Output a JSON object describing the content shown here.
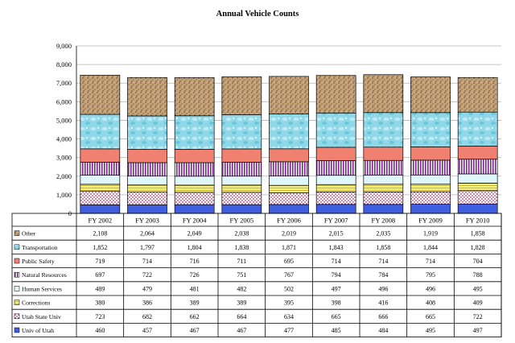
{
  "chart_data": {
    "type": "bar",
    "stacked": true,
    "title": "Annual Vehicle Counts",
    "xlabel": "",
    "ylabel": "",
    "ylim": [
      0,
      9000
    ],
    "yticks": [
      "0",
      "1,000",
      "2,000",
      "3,000",
      "4,000",
      "5,000",
      "6,000",
      "7,000",
      "8,000",
      "9,000"
    ],
    "grid": true,
    "legend": "data table, left",
    "categories": [
      "FY 2002",
      "FY 2003",
      "FY 2004",
      "FY 2005",
      "FY 2006",
      "FY 2007",
      "FY 2008",
      "FY 2009",
      "FY 2010"
    ],
    "series": [
      {
        "name": "Univ of Utah",
        "color": "#3f5fe0",
        "pattern": "solid",
        "values": [
          460,
          457,
          467,
          467,
          477,
          485,
          484,
          495,
          497
        ],
        "labels": [
          "460",
          "457",
          "467",
          "467",
          "477",
          "485",
          "484",
          "495",
          "497"
        ]
      },
      {
        "name": "Utah State Univ",
        "color": "#c8649a",
        "pattern": "dots",
        "values": [
          723,
          682,
          662,
          664,
          634,
          665,
          666,
          665,
          722
        ],
        "labels": [
          "723",
          "682",
          "662",
          "664",
          "634",
          "665",
          "666",
          "665",
          "722"
        ]
      },
      {
        "name": "Corrections",
        "color": "#f6f08a",
        "pattern": "hstripes",
        "values": [
          380,
          386,
          389,
          389,
          395,
          398,
          416,
          408,
          409
        ],
        "labels": [
          "380",
          "386",
          "389",
          "389",
          "395",
          "398",
          "416",
          "408",
          "409"
        ]
      },
      {
        "name": "Human Services",
        "color": "#dff6fb",
        "pattern": "solid",
        "values": [
          489,
          479,
          481,
          482,
          502,
          497,
          496,
          496,
          495
        ],
        "labels": [
          "489",
          "479",
          "481",
          "482",
          "502",
          "497",
          "496",
          "496",
          "495"
        ]
      },
      {
        "name": "Natural Resources",
        "color": "#7a2a8c",
        "pattern": "vstripes",
        "values": [
          697,
          722,
          726,
          751,
          767,
          794,
          784,
          795,
          788
        ],
        "labels": [
          "697",
          "722",
          "726",
          "751",
          "767",
          "794",
          "784",
          "795",
          "788"
        ]
      },
      {
        "name": "Public Safety",
        "color": "#f08070",
        "pattern": "solid",
        "values": [
          719,
          714,
          716,
          711,
          695,
          714,
          714,
          714,
          704
        ],
        "labels": [
          "719",
          "714",
          "716",
          "711",
          "695",
          "714",
          "714",
          "714",
          "704"
        ]
      },
      {
        "name": "Transportation",
        "color": "#8fd8e8",
        "pattern": "bubbles",
        "values": [
          1852,
          1797,
          1804,
          1838,
          1871,
          1843,
          1858,
          1844,
          1828
        ],
        "labels": [
          "1,852",
          "1,797",
          "1,804",
          "1,838",
          "1,871",
          "1,843",
          "1,858",
          "1,844",
          "1,828"
        ]
      },
      {
        "name": "Other",
        "color": "#b8956a",
        "pattern": "speckle",
        "values": [
          2108,
          2064,
          2049,
          2038,
          2019,
          2015,
          2035,
          1919,
          1858
        ],
        "labels": [
          "2,108",
          "2,064",
          "2,049",
          "2,038",
          "2,019",
          "2,015",
          "2,035",
          "1,919",
          "1,858"
        ]
      }
    ]
  }
}
